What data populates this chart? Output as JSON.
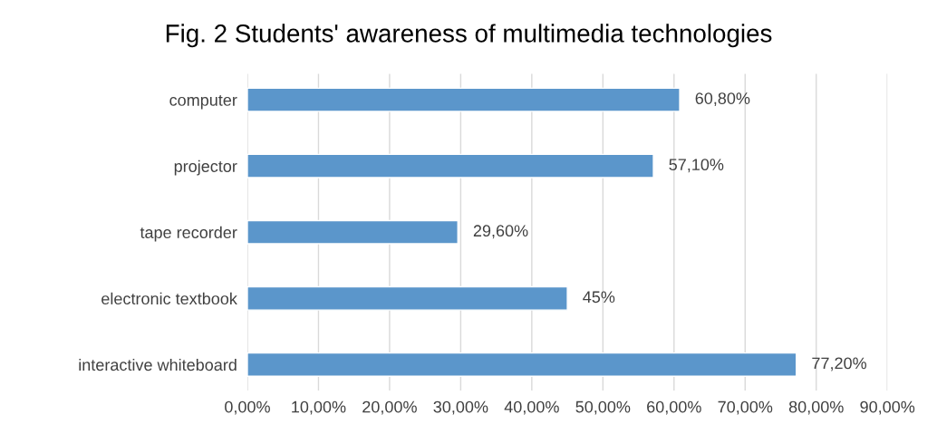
{
  "chart_data": {
    "type": "bar",
    "orientation": "horizontal",
    "title": "Fig. 2 Students' awareness of multimedia technologies",
    "categories": [
      "computer",
      "projector",
      "tape recorder",
      "electronic textbook",
      "interactive whiteboard"
    ],
    "values": [
      60.8,
      57.1,
      29.6,
      45,
      77.2
    ],
    "value_labels": [
      "60,80%",
      "57,10%",
      "29,60%",
      "45%",
      "77,20%"
    ],
    "color": "#5b96cb",
    "xlim": [
      0,
      90
    ],
    "xticks": [
      {
        "value": 0,
        "label": "0,00%"
      },
      {
        "value": 10,
        "label": "10,00%"
      },
      {
        "value": 20,
        "label": "20,00%"
      },
      {
        "value": 30,
        "label": "30,00%"
      },
      {
        "value": 40,
        "label": "40,00%"
      },
      {
        "value": 50,
        "label": "50,00%"
      },
      {
        "value": 60,
        "label": "60,00%"
      },
      {
        "value": 70,
        "label": "70,00%"
      },
      {
        "value": 80,
        "label": "80,00%"
      },
      {
        "value": 90,
        "label": "90,00%"
      }
    ],
    "grid": "x"
  }
}
